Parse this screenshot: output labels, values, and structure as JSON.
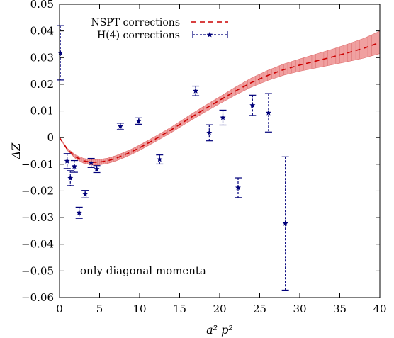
{
  "chart_data": {
    "type": "scatter",
    "xlabel": "a² p²",
    "ylabel": "ΔZ",
    "xlim": [
      0,
      40
    ],
    "ylim": [
      -0.06,
      0.05
    ],
    "x_ticks": [
      0,
      5,
      10,
      15,
      20,
      25,
      30,
      35,
      40
    ],
    "y_ticks": [
      -0.06,
      -0.05,
      -0.04,
      -0.03,
      -0.02,
      -0.01,
      0,
      0.01,
      0.02,
      0.03,
      0.04,
      0.05
    ],
    "y_tick_labels": [
      "−0.06",
      "−0.05",
      "−0.04",
      "−0.03",
      "−0.02",
      "−0.01",
      "0",
      "0.01",
      "0.02",
      "0.03",
      "0.04",
      "0.05"
    ],
    "legend_position": "top-left",
    "annotation": "only diagonal momenta",
    "series": [
      {
        "name": "NSPT corrections",
        "kind": "band",
        "color": "#cc0000",
        "band_color": "#f0a0a0",
        "x": [
          0,
          1,
          2,
          3,
          4,
          5,
          6,
          7,
          8,
          9,
          10,
          12,
          14,
          16,
          18,
          20,
          22,
          24,
          26,
          28,
          30,
          32,
          34,
          36,
          38,
          40
        ],
        "y": [
          0.0,
          -0.0045,
          -0.0072,
          -0.0087,
          -0.0093,
          -0.0092,
          -0.0087,
          -0.0078,
          -0.0066,
          -0.0053,
          -0.0038,
          -0.0005,
          0.003,
          0.0068,
          0.0105,
          0.014,
          0.0175,
          0.0207,
          0.0233,
          0.0255,
          0.0272,
          0.0287,
          0.0302,
          0.0318,
          0.0335,
          0.0357
        ],
        "err": [
          0.0,
          0.0004,
          0.0007,
          0.0009,
          0.001,
          0.001,
          0.001,
          0.001,
          0.001,
          0.001,
          0.001,
          0.001,
          0.001,
          0.0011,
          0.0012,
          0.0013,
          0.0015,
          0.0017,
          0.0019,
          0.0021,
          0.0023,
          0.0026,
          0.0029,
          0.0033,
          0.0037,
          0.0042
        ]
      },
      {
        "name": "H(4) corrections",
        "kind": "errorbar",
        "color": "#00007a",
        "points": [
          {
            "x": 0.1,
            "y": 0.0318,
            "err": 0.0102
          },
          {
            "x": 0.95,
            "y": -0.0088,
            "err": 0.0028
          },
          {
            "x": 1.35,
            "y": -0.0152,
            "err": 0.0028
          },
          {
            "x": 1.85,
            "y": -0.0108,
            "err": 0.0022
          },
          {
            "x": 2.45,
            "y": -0.0282,
            "err": 0.0021
          },
          {
            "x": 3.2,
            "y": -0.0212,
            "err": 0.0014
          },
          {
            "x": 3.95,
            "y": -0.0095,
            "err": 0.0017
          },
          {
            "x": 4.65,
            "y": -0.0118,
            "err": 0.0013
          },
          {
            "x": 7.6,
            "y": 0.0042,
            "err": 0.0012
          },
          {
            "x": 9.9,
            "y": 0.0062,
            "err": 0.0012
          },
          {
            "x": 12.5,
            "y": -0.0082,
            "err": 0.0017
          },
          {
            "x": 17.0,
            "y": 0.0175,
            "err": 0.0018
          },
          {
            "x": 18.7,
            "y": 0.0018,
            "err": 0.003
          },
          {
            "x": 20.4,
            "y": 0.0075,
            "err": 0.0028
          },
          {
            "x": 22.3,
            "y": -0.0188,
            "err": 0.0037
          },
          {
            "x": 24.1,
            "y": 0.0121,
            "err": 0.0038
          },
          {
            "x": 26.1,
            "y": 0.0093,
            "err": 0.0072
          },
          {
            "x": 28.2,
            "y": -0.0322,
            "err": 0.025
          }
        ]
      }
    ]
  }
}
